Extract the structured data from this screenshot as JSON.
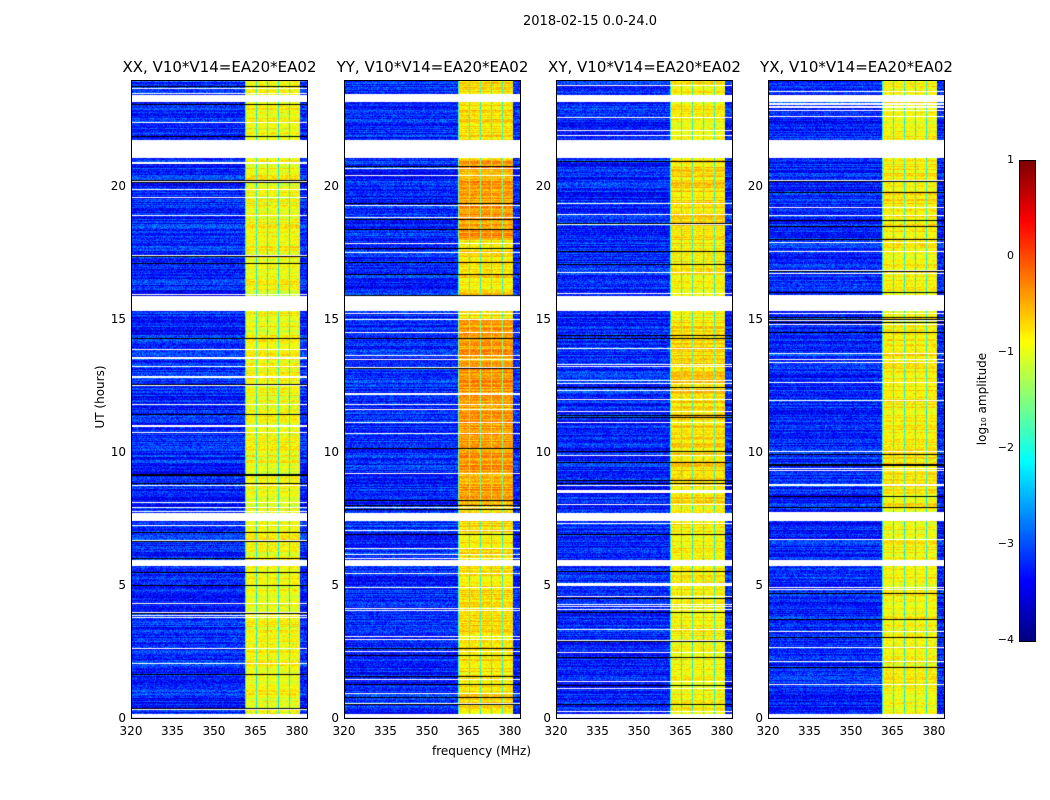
{
  "chart_data": {
    "type": "heatmap",
    "title": "2018-02-15 0.0-24.0",
    "xlabel": "frequency (MHz)",
    "ylabel": "UT (hours)",
    "xlim": [
      320,
      384
    ],
    "ylim": [
      0,
      24
    ],
    "xticks": [
      "320",
      "335",
      "350",
      "365",
      "380"
    ],
    "yticks": [
      "0",
      "5",
      "10",
      "15",
      "20"
    ],
    "panels": [
      {
        "title": "XX, V10*V14=EA20*EA02",
        "strength": 0.0
      },
      {
        "title": "YY, V10*V14=EA20*EA02",
        "strength": 0.5
      },
      {
        "title": "XY, V10*V14=EA20*EA02",
        "strength": 0.2
      },
      {
        "title": "YX, V10*V14=EA20*EA02",
        "strength": 0.1
      }
    ],
    "rfi_band_mhz": [
      361,
      381
    ],
    "flagged_hours": [
      [
        23.2,
        23.45
      ],
      [
        21.1,
        21.75
      ],
      [
        15.35,
        15.9
      ],
      [
        7.45,
        7.75
      ],
      [
        5.75,
        6.0
      ],
      [
        0.05,
        0.2
      ]
    ],
    "colorbar": {
      "label": "log₁₀ amplitude",
      "min": -4,
      "max": 1,
      "ticks": [
        "1",
        "0",
        "−1",
        "−2",
        "−3",
        "−4"
      ]
    }
  }
}
